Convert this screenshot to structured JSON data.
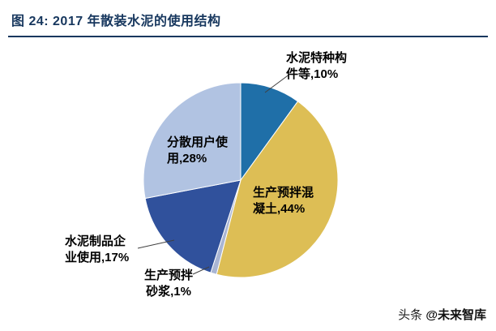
{
  "header": {
    "title": "图 24:  2017 年散装水泥的使用结构"
  },
  "chart_data": {
    "type": "pie",
    "title": "2017 年散装水泥的使用结构",
    "direction": "clockwise",
    "start_angle_deg": 0,
    "legend_position": "none",
    "slices": [
      {
        "label": "水泥特种构件等",
        "value": 10,
        "display": "水泥特种构件等,10%",
        "color": "#1F6FA8"
      },
      {
        "label": "生产预拌混凝土",
        "value": 44,
        "display": "生产预拌混凝土,44%",
        "color": "#DDBE55"
      },
      {
        "label": "生产预拌砂浆",
        "value": 1,
        "display": "生产预拌砂浆,1%",
        "color": "#A9B5D3"
      },
      {
        "label": "水泥制品企业使用",
        "value": 17,
        "display": "水泥制品企业使用,17%",
        "color": "#30519C"
      },
      {
        "label": "分散用户使用",
        "value": 28,
        "display": "分散用户使用,28%",
        "color": "#B1C3E2"
      }
    ]
  },
  "watermark": {
    "prefix": "头条",
    "handle": "@未来智库"
  }
}
